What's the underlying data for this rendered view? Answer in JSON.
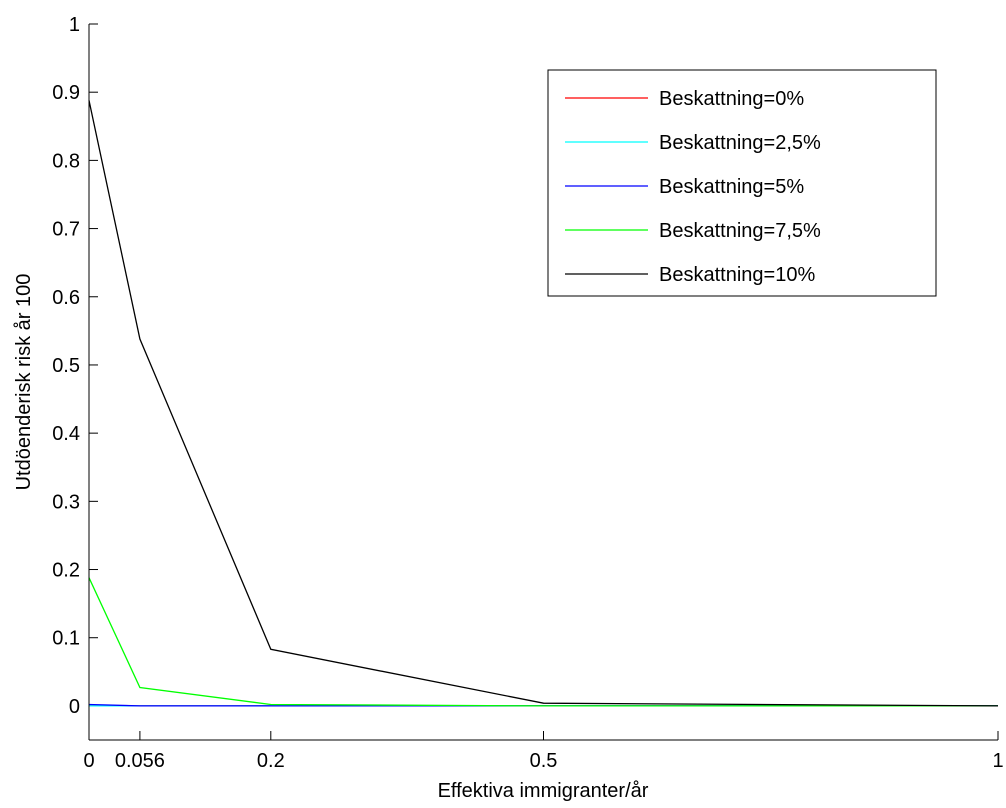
{
  "chart_data": {
    "type": "line",
    "title": "",
    "xlabel": "Effektiva immigranter/år",
    "ylabel": "Utdöenderisk risk år 100",
    "x": [
      0,
      0.056,
      0.2,
      0.5,
      1
    ],
    "xticks": [
      0,
      0.056,
      0.2,
      0.5,
      1
    ],
    "xtick_labels": [
      "0",
      "0.056",
      "0.2",
      "0.5",
      "1"
    ],
    "yticks": [
      0,
      0.1,
      0.2,
      0.3,
      0.4,
      0.5,
      0.6,
      0.7,
      0.8,
      0.9,
      1
    ],
    "ytick_labels": [
      "0",
      "0.1",
      "0.2",
      "0.3",
      "0.4",
      "0.5",
      "0.6",
      "0.7",
      "0.8",
      "0.9",
      "1"
    ],
    "xlim": [
      0,
      1
    ],
    "ylim": [
      -0.05,
      1
    ],
    "grid": false,
    "legend_position": "top-right",
    "series": [
      {
        "name": "Beskattning=0%",
        "color": "#ff0000",
        "values": [
          0,
          0,
          0,
          0,
          0
        ]
      },
      {
        "name": "Beskattning=2,5%",
        "color": "#00ffff",
        "values": [
          0,
          0,
          0,
          0,
          0
        ]
      },
      {
        "name": "Beskattning=5%",
        "color": "#0000ff",
        "values": [
          0.002,
          0,
          0,
          0,
          0
        ]
      },
      {
        "name": "Beskattning=7,5%",
        "color": "#00ff00",
        "values": [
          0.188,
          0.027,
          0.002,
          0,
          0
        ]
      },
      {
        "name": "Beskattning=10%",
        "color": "#000000",
        "values": [
          0.888,
          0.538,
          0.083,
          0.004,
          0
        ]
      }
    ]
  }
}
